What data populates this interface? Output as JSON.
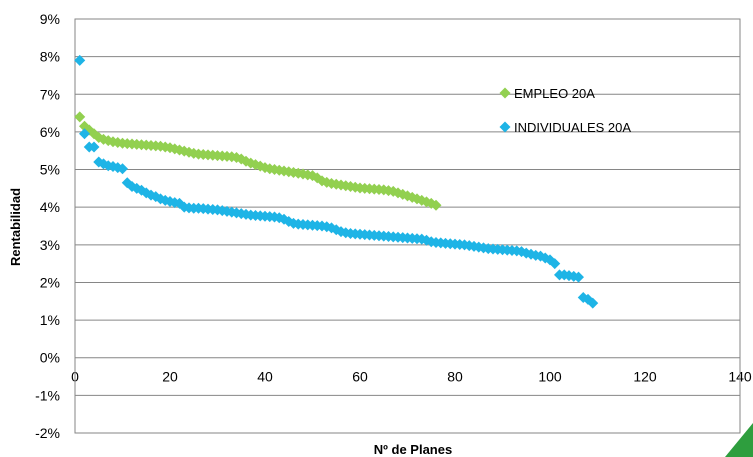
{
  "chart_data": {
    "type": "scatter",
    "xlabel": "Nº de Planes",
    "ylabel": "Rentabilidad",
    "xlim": [
      0,
      140
    ],
    "ylim": [
      -2,
      9
    ],
    "x_ticks": [
      "0",
      "20",
      "40",
      "60",
      "80",
      "100",
      "120",
      "140"
    ],
    "y_ticks": [
      "-2%",
      "-1%",
      "0%",
      "1%",
      "2%",
      "3%",
      "4%",
      "5%",
      "6%",
      "7%",
      "8%",
      "9%"
    ],
    "legend_position": "right, inside plot area",
    "grid": "horizontal",
    "series": [
      {
        "name": "EMPLEO 20A",
        "color": "#92D050",
        "marker": "diamond",
        "x": [
          1,
          2,
          3,
          4,
          5,
          6,
          7,
          8,
          9,
          10,
          11,
          12,
          13,
          14,
          15,
          16,
          17,
          18,
          19,
          20,
          21,
          22,
          23,
          24,
          25,
          26,
          27,
          28,
          29,
          30,
          31,
          32,
          33,
          34,
          35,
          36,
          37,
          38,
          39,
          40,
          41,
          42,
          43,
          44,
          45,
          46,
          47,
          48,
          49,
          50,
          51,
          52,
          53,
          54,
          55,
          56,
          57,
          58,
          59,
          60,
          61,
          62,
          63,
          64,
          65,
          66,
          67,
          68,
          69,
          70,
          71,
          72,
          73,
          74,
          75,
          76
        ],
        "y": [
          6.4,
          6.15,
          6.05,
          5.95,
          5.85,
          5.8,
          5.77,
          5.74,
          5.72,
          5.7,
          5.69,
          5.68,
          5.67,
          5.66,
          5.65,
          5.64,
          5.63,
          5.62,
          5.6,
          5.58,
          5.55,
          5.52,
          5.49,
          5.46,
          5.43,
          5.41,
          5.4,
          5.39,
          5.38,
          5.37,
          5.36,
          5.35,
          5.34,
          5.32,
          5.28,
          5.22,
          5.17,
          5.13,
          5.09,
          5.05,
          5.02,
          5.0,
          4.98,
          4.96,
          4.94,
          4.92,
          4.9,
          4.88,
          4.86,
          4.84,
          4.78,
          4.7,
          4.66,
          4.63,
          4.61,
          4.59,
          4.57,
          4.55,
          4.53,
          4.51,
          4.5,
          4.49,
          4.48,
          4.47,
          4.46,
          4.44,
          4.42,
          4.38,
          4.34,
          4.3,
          4.26,
          4.22,
          4.18,
          4.14,
          4.1,
          4.05
        ]
      },
      {
        "name": "INDIVIDUALES 20A",
        "color": "#1EB4E6",
        "marker": "diamond",
        "x": [
          1,
          2,
          3,
          4,
          5,
          6,
          7,
          8,
          9,
          10,
          11,
          12,
          13,
          14,
          15,
          16,
          17,
          18,
          19,
          20,
          21,
          22,
          23,
          24,
          25,
          26,
          27,
          28,
          29,
          30,
          31,
          32,
          33,
          34,
          35,
          36,
          37,
          38,
          39,
          40,
          41,
          42,
          43,
          44,
          45,
          46,
          47,
          48,
          49,
          50,
          51,
          52,
          53,
          54,
          55,
          56,
          57,
          58,
          59,
          60,
          61,
          62,
          63,
          64,
          65,
          66,
          67,
          68,
          69,
          70,
          71,
          72,
          73,
          74,
          75,
          76,
          77,
          78,
          79,
          80,
          81,
          82,
          83,
          84,
          85,
          86,
          87,
          88,
          89,
          90,
          91,
          92,
          93,
          94,
          95,
          96,
          97,
          98,
          99,
          100,
          101,
          102,
          103,
          104,
          105,
          106,
          107,
          108,
          109
        ],
        "y": [
          7.9,
          5.95,
          5.6,
          5.6,
          5.2,
          5.15,
          5.1,
          5.08,
          5.05,
          5.02,
          4.65,
          4.55,
          4.5,
          4.45,
          4.38,
          4.32,
          4.28,
          4.22,
          4.18,
          4.15,
          4.12,
          4.1,
          4.0,
          3.98,
          3.97,
          3.97,
          3.96,
          3.95,
          3.94,
          3.93,
          3.91,
          3.89,
          3.87,
          3.85,
          3.83,
          3.81,
          3.79,
          3.78,
          3.77,
          3.76,
          3.75,
          3.74,
          3.72,
          3.68,
          3.62,
          3.57,
          3.55,
          3.54,
          3.53,
          3.52,
          3.51,
          3.5,
          3.48,
          3.45,
          3.4,
          3.35,
          3.32,
          3.3,
          3.29,
          3.28,
          3.27,
          3.26,
          3.25,
          3.24,
          3.23,
          3.22,
          3.21,
          3.2,
          3.19,
          3.18,
          3.17,
          3.16,
          3.15,
          3.12,
          3.08,
          3.06,
          3.05,
          3.04,
          3.03,
          3.02,
          3.01,
          3.0,
          2.98,
          2.96,
          2.94,
          2.92,
          2.9,
          2.89,
          2.88,
          2.87,
          2.86,
          2.85,
          2.84,
          2.82,
          2.78,
          2.75,
          2.72,
          2.7,
          2.65,
          2.6,
          2.5,
          2.2,
          2.2,
          2.18,
          2.16,
          2.14,
          1.6,
          1.55,
          1.45
        ]
      }
    ]
  }
}
